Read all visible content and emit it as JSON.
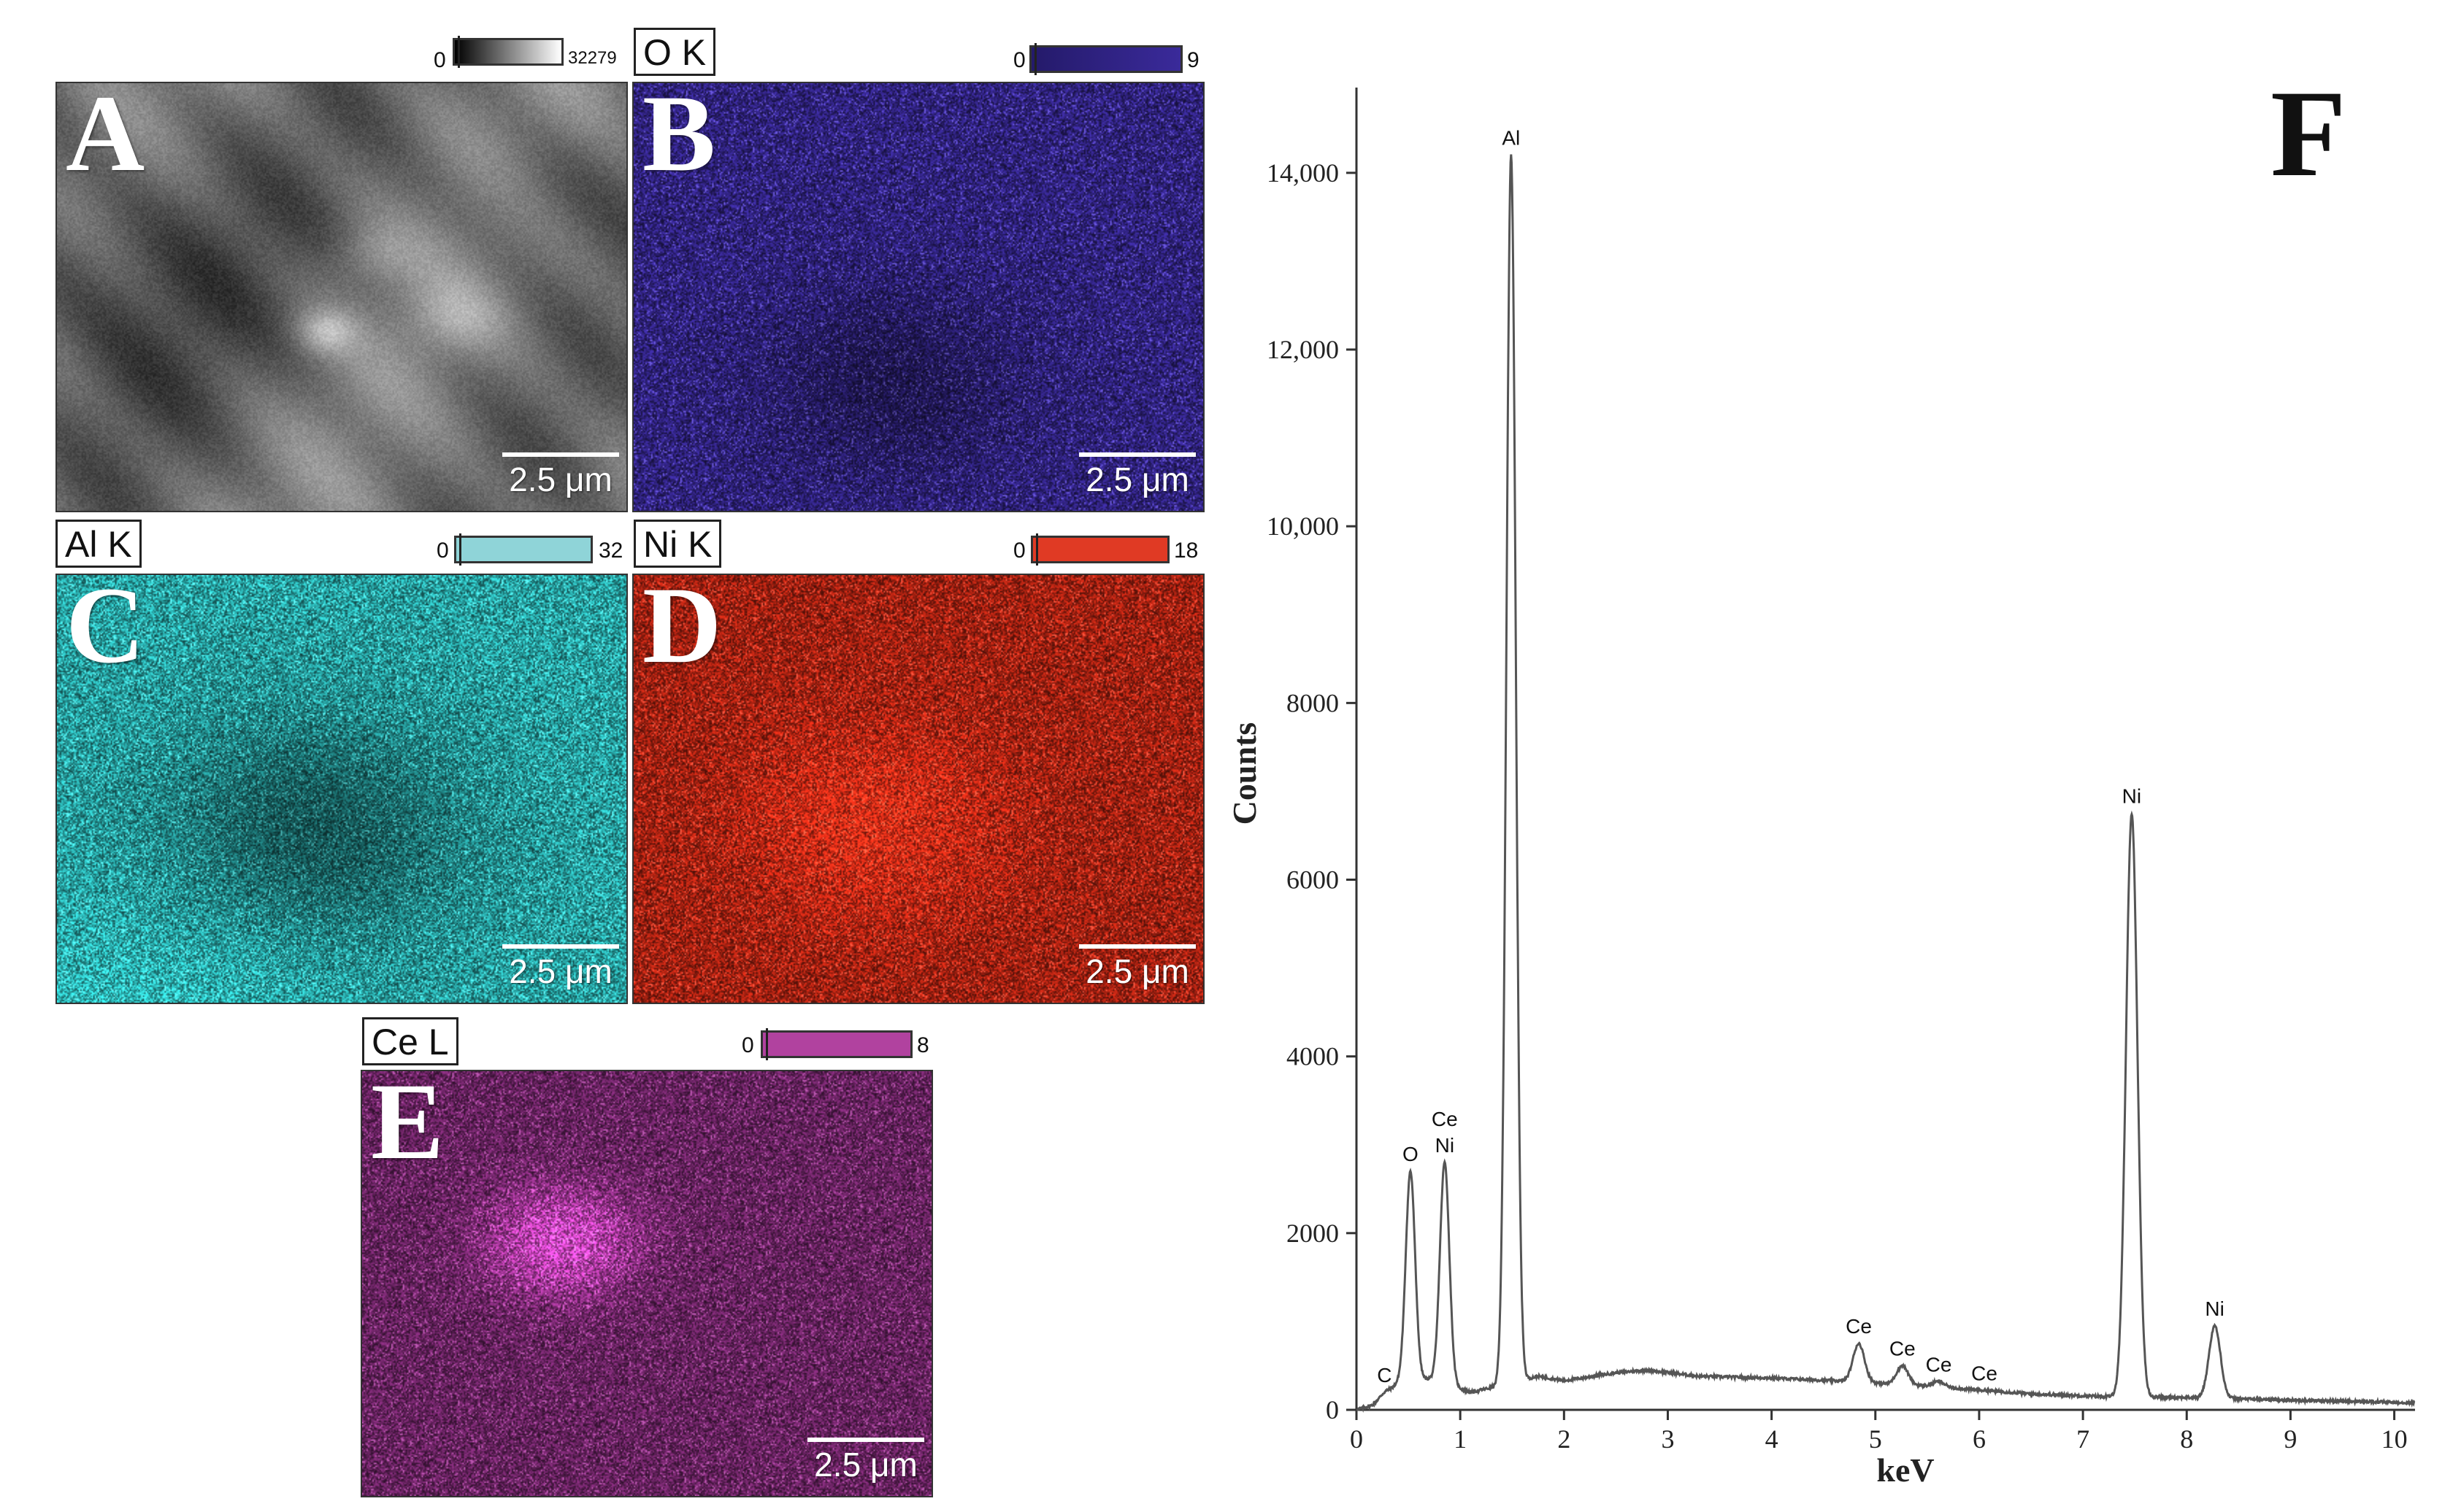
{
  "maps": {
    "a": {
      "letter": "A",
      "scale": "2.5 μm",
      "cmin": "0",
      "cmax": "32279",
      "color": "#777777"
    },
    "b": {
      "letter": "B",
      "element": "O K",
      "scale": "2.5 μm",
      "cmin": "0",
      "cmax": "9",
      "color": "#3a2a9a"
    },
    "c": {
      "letter": "C",
      "element": "Al K",
      "scale": "2.5 μm",
      "cmin": "0",
      "cmax": "32",
      "color": "#2bb0b0"
    },
    "d": {
      "letter": "D",
      "element": "Ni K",
      "scale": "2.5 μm",
      "cmin": "0",
      "cmax": "18",
      "color": "#d12a16"
    },
    "e": {
      "letter": "E",
      "element": "Ce L",
      "scale": "2.5 μm",
      "cmin": "0",
      "cmax": "8",
      "color": "#a8389c"
    }
  },
  "chart_data": {
    "type": "line",
    "panel_label": "F",
    "title": "",
    "xlabel": "keV",
    "ylabel": "Counts",
    "xlim": [
      0,
      10.2
    ],
    "ylim": [
      0,
      14800
    ],
    "x_ticks": [
      "0",
      "1",
      "2",
      "3",
      "4",
      "5",
      "6",
      "7",
      "8",
      "9",
      "10"
    ],
    "y_ticks": [
      "0",
      "2000",
      "4000",
      "6000",
      "8000",
      "10,000",
      "12,000",
      "14,000"
    ],
    "line_color": "#555555",
    "peaks": [
      {
        "label": "C",
        "x": 0.27,
        "y": 200
      },
      {
        "label": "O",
        "x": 0.52,
        "y": 2700
      },
      {
        "label": "Ce Ni",
        "x": 0.85,
        "y": 2800
      },
      {
        "label": "Al",
        "x": 1.49,
        "y": 14200
      },
      {
        "label": "Ce",
        "x": 4.84,
        "y": 750
      },
      {
        "label": "Ce",
        "x": 5.26,
        "y": 500
      },
      {
        "label": "Ce",
        "x": 5.61,
        "y": 320
      },
      {
        "label": "Ce",
        "x": 6.05,
        "y": 220
      },
      {
        "label": "Ni",
        "x": 7.47,
        "y": 6750
      },
      {
        "label": "Ni",
        "x": 8.27,
        "y": 950
      }
    ],
    "background": [
      {
        "x": 0.0,
        "y": 0
      },
      {
        "x": 0.15,
        "y": 50
      },
      {
        "x": 0.4,
        "y": 300
      },
      {
        "x": 0.7,
        "y": 350
      },
      {
        "x": 1.1,
        "y": 200
      },
      {
        "x": 1.3,
        "y": 250
      },
      {
        "x": 1.75,
        "y": 380
      },
      {
        "x": 2.0,
        "y": 330
      },
      {
        "x": 2.5,
        "y": 420
      },
      {
        "x": 2.8,
        "y": 450
      },
      {
        "x": 3.3,
        "y": 380
      },
      {
        "x": 4.0,
        "y": 360
      },
      {
        "x": 4.6,
        "y": 330
      },
      {
        "x": 5.5,
        "y": 270
      },
      {
        "x": 6.5,
        "y": 180
      },
      {
        "x": 7.2,
        "y": 150
      },
      {
        "x": 8.0,
        "y": 140
      },
      {
        "x": 9.0,
        "y": 110
      },
      {
        "x": 10.2,
        "y": 80
      }
    ]
  }
}
